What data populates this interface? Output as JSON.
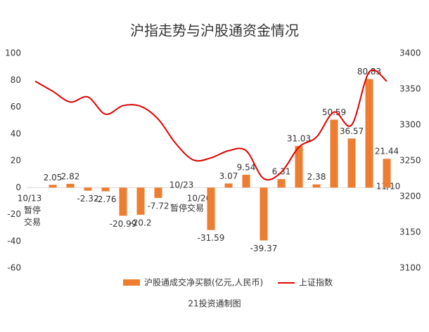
{
  "chart_data": {
    "type": "bar-line",
    "title": "沪指走势与沪股通资金情况",
    "source": "21投资通制图",
    "categories": [
      "10/13",
      null,
      null,
      null,
      null,
      null,
      null,
      null,
      "10/23",
      "10/26",
      null,
      null,
      null,
      null,
      null,
      null,
      null,
      null,
      null,
      null,
      "11/10"
    ],
    "annotations": [
      [
        "暂停",
        "交易"
      ],
      [
        "暂停交易"
      ]
    ],
    "series": [
      {
        "name": "沪股通成交净买额(亿元,人民币)",
        "color": "#ed7d31",
        "axis": "y",
        "values": [
          null,
          2.05,
          2.82,
          -2.32,
          -2.76,
          -20.99,
          -20.2,
          -7.72,
          null,
          null,
          -31.59,
          3.07,
          9.54,
          -39.37,
          6.31,
          31.03,
          2.38,
          50.59,
          36.57,
          80.83,
          21.44
        ]
      },
      {
        "name": "上证指数",
        "color": "#e00000",
        "axis": "y2",
        "values": [
          3361,
          3347,
          3332,
          3339,
          3315,
          3327,
          3326,
          3308,
          3274,
          3251,
          3254,
          3264,
          3264,
          3225,
          3234,
          3269,
          3283,
          3318,
          3300,
          3374,
          3361
        ]
      }
    ],
    "ylim": [
      -60,
      100
    ],
    "yticks": [
      -60,
      -40,
      -20,
      0,
      20,
      40,
      60,
      80,
      100
    ],
    "y2lim": [
      3100,
      3400
    ],
    "y2ticks": [
      3100,
      3150,
      3200,
      3250,
      3300,
      3350,
      3400
    ],
    "grid": false
  }
}
